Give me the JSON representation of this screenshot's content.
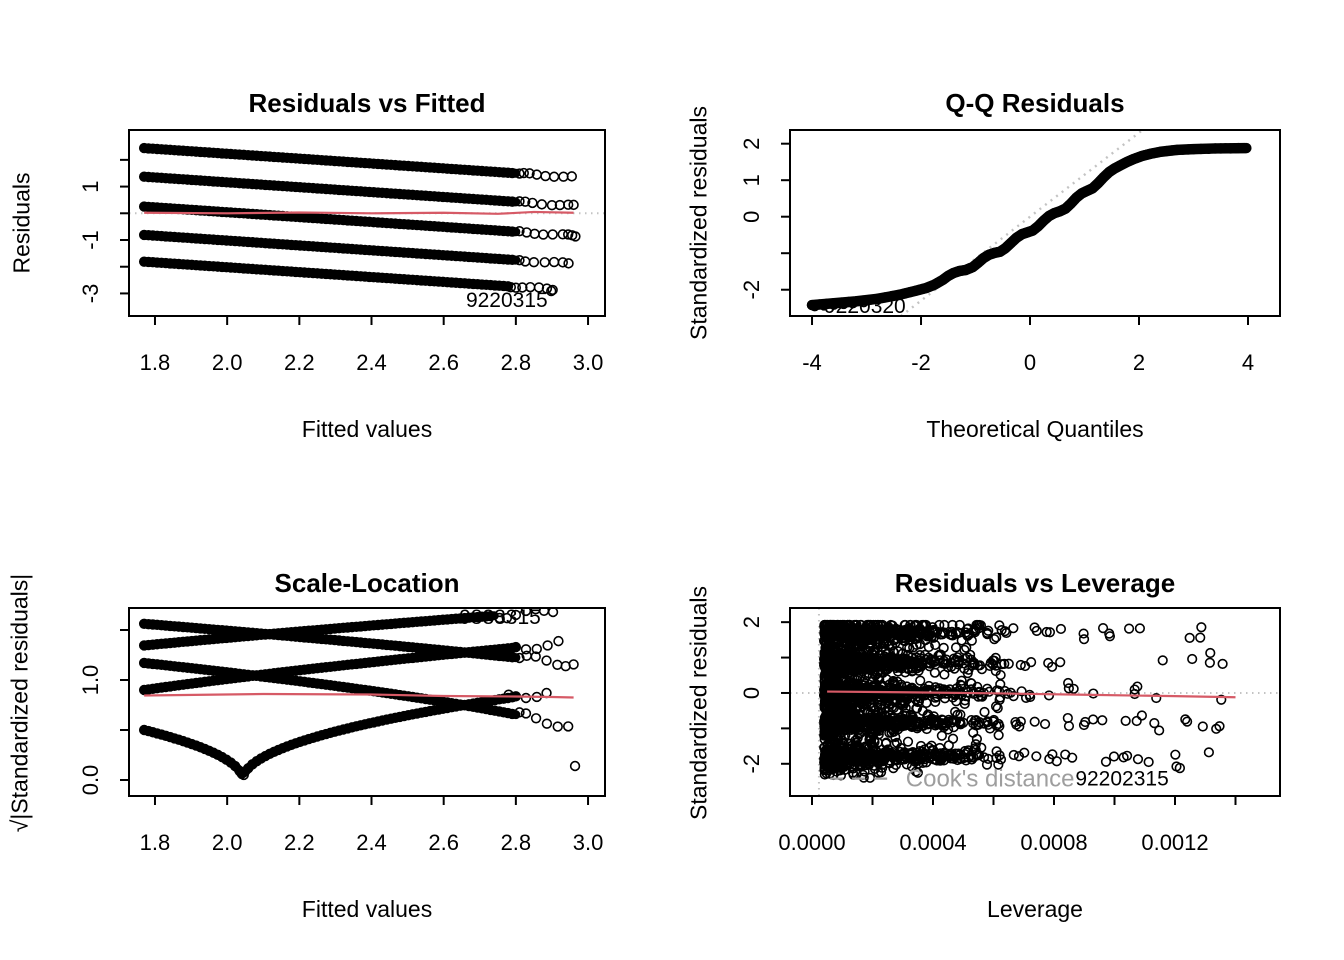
{
  "figure": {
    "background": "#ffffff",
    "point_color": "#000000",
    "smooth_line_color": "#d65a66",
    "ref_line_color": "#c3c3c3",
    "cook_color": "#9e9e9e"
  },
  "chart_data": [
    {
      "id": "residuals-vs-fitted",
      "type": "scatter",
      "title": "Residuals vs Fitted",
      "xlabel": "Fitted values",
      "ylabel": "Residuals",
      "xlim": [
        1.728,
        3.047
      ],
      "ylim": [
        -3.845,
        3.118
      ],
      "xticks": [
        1.8,
        2.0,
        2.2,
        2.4,
        2.6,
        2.8,
        3.0
      ],
      "xtick_labels": [
        "1.8",
        "2.0",
        "2.2",
        "2.4",
        "2.6",
        "2.8",
        "3.0"
      ],
      "yticks": [
        2,
        1,
        0,
        -1,
        -2,
        -3
      ],
      "ytick_labels": [
        "",
        "1",
        "",
        "-1",
        "",
        "-3"
      ],
      "grid": false,
      "bands": {
        "x_start": 1.77,
        "slope": -0.915,
        "intercepts": [
          2.44,
          1.37,
          0.25,
          -0.81,
          -1.81
        ],
        "solid_end": [
          2.8,
          2.8,
          2.8,
          2.8,
          2.78
        ],
        "tails": [
          [
            2.81,
            2.822,
            2.838,
            2.858,
            2.882,
            2.906,
            2.932,
            2.955
          ],
          [
            2.81,
            2.826,
            2.846,
            2.872,
            2.9,
            2.922,
            2.945,
            2.96
          ],
          [
            2.81,
            2.83,
            2.852,
            2.876,
            2.902,
            2.93,
            2.945,
            2.956,
            2.965
          ],
          [
            2.81,
            2.826,
            2.85,
            2.88,
            2.906,
            2.93,
            2.946
          ],
          [
            2.786,
            2.8,
            2.818,
            2.84,
            2.864,
            2.886,
            2.902
          ]
        ]
      },
      "ref_hline": 0,
      "smooth_line": [
        [
          1.77,
          0.02
        ],
        [
          2.0,
          0.0
        ],
        [
          2.2,
          0.03
        ],
        [
          2.4,
          0.0
        ],
        [
          2.6,
          0.02
        ],
        [
          2.75,
          -0.02
        ],
        [
          2.85,
          0.05
        ],
        [
          2.96,
          0.02
        ]
      ],
      "annotations": [
        {
          "text": "9220315",
          "x": 2.775,
          "y": -3.25
        }
      ],
      "outliers": [
        [
          2.898,
          -2.91
        ]
      ]
    },
    {
      "id": "qq-residuals",
      "type": "scatter",
      "title": "Q-Q Residuals",
      "xlabel": "Theoretical Quantiles",
      "ylabel": "Standardized residuals",
      "xlim": [
        -4.404,
        4.587
      ],
      "ylim": [
        -2.72,
        2.375
      ],
      "xticks": [
        -4,
        -2,
        0,
        2,
        4
      ],
      "xtick_labels": [
        "-4",
        "-2",
        "0",
        "2",
        "4"
      ],
      "yticks": [
        2,
        1,
        0,
        -1,
        -2
      ],
      "ytick_labels": [
        "2",
        "1",
        "0",
        "",
        "-2"
      ],
      "grid": false,
      "qq_line": {
        "slope": 1.15,
        "intercept": 0
      },
      "curve": [
        [
          -4,
          -2.42
        ],
        [
          -3.6,
          -2.37
        ],
        [
          -3.2,
          -2.32
        ],
        [
          -2.8,
          -2.25
        ],
        [
          -2.4,
          -2.14
        ],
        [
          -2.1,
          -2.03
        ],
        [
          -1.9,
          -1.95
        ],
        [
          -1.75,
          -1.86
        ],
        [
          -1.6,
          -1.73
        ],
        [
          -1.5,
          -1.62
        ],
        [
          -1.4,
          -1.54
        ],
        [
          -1.3,
          -1.49
        ],
        [
          -1.18,
          -1.46
        ],
        [
          -1.05,
          -1.38
        ],
        [
          -0.95,
          -1.26
        ],
        [
          -0.85,
          -1.13
        ],
        [
          -0.75,
          -1.04
        ],
        [
          -0.65,
          -0.99
        ],
        [
          -0.55,
          -0.96
        ],
        [
          -0.45,
          -0.86
        ],
        [
          -0.35,
          -0.72
        ],
        [
          -0.25,
          -0.58
        ],
        [
          -0.15,
          -0.48
        ],
        [
          -0.05,
          -0.43
        ],
        [
          0.05,
          -0.38
        ],
        [
          0.15,
          -0.26
        ],
        [
          0.25,
          -0.11
        ],
        [
          0.35,
          0.02
        ],
        [
          0.45,
          0.1
        ],
        [
          0.55,
          0.15
        ],
        [
          0.65,
          0.22
        ],
        [
          0.75,
          0.36
        ],
        [
          0.85,
          0.52
        ],
        [
          0.95,
          0.64
        ],
        [
          1.05,
          0.71
        ],
        [
          1.15,
          0.78
        ],
        [
          1.25,
          0.92
        ],
        [
          1.35,
          1.08
        ],
        [
          1.45,
          1.22
        ],
        [
          1.55,
          1.32
        ],
        [
          1.65,
          1.4
        ],
        [
          1.78,
          1.5
        ],
        [
          1.9,
          1.58
        ],
        [
          2.05,
          1.66
        ],
        [
          2.2,
          1.72
        ],
        [
          2.4,
          1.78
        ],
        [
          2.7,
          1.83
        ],
        [
          3.0,
          1.85
        ],
        [
          3.4,
          1.87
        ],
        [
          3.95,
          1.88
        ]
      ],
      "tail_points": [
        [
          -3.95,
          -2.45
        ],
        [
          -3.78,
          -2.43
        ],
        [
          -3.6,
          -2.41
        ],
        [
          -3.42,
          -2.39
        ],
        [
          -3.25,
          -2.37
        ],
        [
          -3.05,
          -2.34
        ],
        [
          3.28,
          1.86
        ],
        [
          3.5,
          1.87
        ],
        [
          3.68,
          1.87
        ],
        [
          3.82,
          1.88
        ],
        [
          3.97,
          1.88
        ]
      ],
      "annotations": [
        {
          "text": "9220320",
          "x": -3.03,
          "y": -2.45
        }
      ]
    },
    {
      "id": "scale-location",
      "type": "scatter",
      "title": "Scale-Location",
      "xlabel": "Fitted values",
      "ylabel": "√|Standardized residuals|",
      "xlim": [
        1.728,
        3.047
      ],
      "ylim": [
        -0.16,
        1.72
      ],
      "xticks": [
        1.8,
        2.0,
        2.2,
        2.4,
        2.6,
        2.8,
        3.0
      ],
      "xtick_labels": [
        "1.8",
        "2.0",
        "2.2",
        "2.4",
        "2.6",
        "2.8",
        "3.0"
      ],
      "yticks": [
        1.5,
        1.0,
        0.5,
        0.0
      ],
      "ytick_labels": [
        "",
        "1.0",
        "",
        "0.0"
      ],
      "grid": false,
      "bands": {
        "x_start": 1.77,
        "slope": -0.915,
        "intercepts": [
          2.44,
          1.37,
          0.25,
          -0.81,
          -1.81
        ],
        "solid_end": [
          2.8,
          2.8,
          2.8,
          2.8,
          2.74
        ],
        "tails": [
          [
            2.81,
            2.83,
            2.855,
            2.885,
            2.915,
            2.938,
            2.96
          ],
          [
            2.81,
            2.828,
            2.856,
            2.886,
            2.916,
            2.945
          ],
          [
            2.78,
            2.8,
            2.828,
            2.858,
            2.885
          ],
          [
            2.8,
            2.828,
            2.858,
            2.888,
            2.918
          ],
          [
            2.755,
            2.775,
            2.8,
            2.828,
            2.855,
            2.878
          ]
        ]
      },
      "smooth_line": [
        [
          1.77,
          0.845
        ],
        [
          2.1,
          0.86
        ],
        [
          2.4,
          0.855
        ],
        [
          2.6,
          0.84
        ],
        [
          2.8,
          0.835
        ],
        [
          2.9,
          0.83
        ],
        [
          2.96,
          0.825
        ]
      ],
      "annotations": [
        {
          "text": "9883315",
          "x": 2.756,
          "y": 1.63
        }
      ],
      "outliers": [
        [
          2.903,
          1.68
        ],
        [
          2.964,
          0.14
        ]
      ]
    },
    {
      "id": "residuals-vs-leverage",
      "type": "scatter",
      "title": "Residuals vs Leverage",
      "xlabel": "Leverage",
      "ylabel": "Standardized residuals",
      "xlim": [
        -7.27e-05,
        0.0015471
      ],
      "ylim": [
        -2.91,
        2.4
      ],
      "xticks": [
        0.0,
        0.0002,
        0.0004,
        0.0006,
        0.0008,
        0.001,
        0.0012,
        0.0014
      ],
      "xtick_labels": [
        "0.0000",
        "",
        "0.0004",
        "",
        "0.0008",
        "",
        "0.0012",
        ""
      ],
      "yticks": [
        2,
        1,
        0,
        -1,
        -2
      ],
      "ytick_labels": [
        "2",
        "",
        "0",
        "",
        "-2"
      ],
      "grid": false,
      "ref_hline": 0,
      "ref_vline": 2.3e-05,
      "bands_y": [
        1.7,
        0.85,
        0.0,
        -0.85,
        -1.8
      ],
      "cloud": {
        "seed": 42,
        "core": {
          "n": 1700,
          "x_min": 4e-05,
          "x_scale": 0.00013,
          "x_cap": 0.00063,
          "y_sd": 0.42
        },
        "fingers": {
          "n": 1500,
          "x_min": 4e-05,
          "x_scale": 0.00018,
          "x_cap": 0.0007,
          "y_sd": 0.11
        },
        "tails": {
          "per_band": 13,
          "x_from": 0.0006,
          "x_to": 0.00138,
          "y_sd": 0.16
        },
        "stragglers": 18,
        "y_clip": [
          -2.45,
          1.92
        ]
      },
      "smooth_line": [
        [
          5e-05,
          0.04
        ],
        [
          0.0003,
          0.02
        ],
        [
          0.0006,
          -0.01
        ],
        [
          0.0009,
          -0.05
        ],
        [
          0.0012,
          -0.09
        ],
        [
          0.0014,
          -0.12
        ]
      ],
      "legend": {
        "label": "Cook's distance",
        "x_text": 0.00031,
        "y": -2.42,
        "dash_x1": 6e-05,
        "dash_x2": 0.00027
      },
      "annotations": [
        {
          "text": "92202315",
          "x": 0.001025,
          "y": -2.42
        }
      ],
      "outliers": [
        [
          0.001216,
          -2.12
        ]
      ]
    }
  ]
}
